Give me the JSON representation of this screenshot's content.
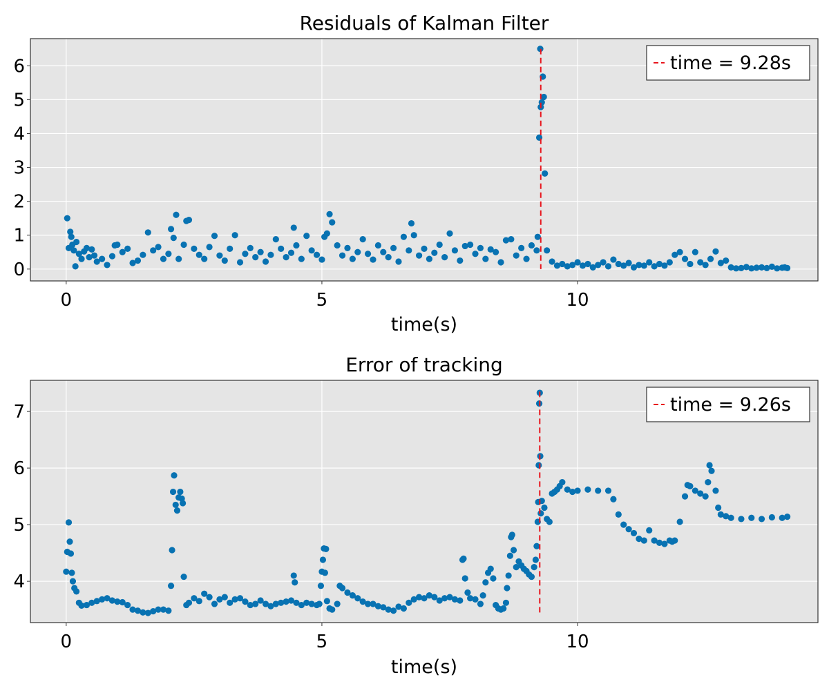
{
  "chart_data": [
    {
      "type": "scatter",
      "title": "Residuals of Kalman Filter",
      "xlabel": "time(s)",
      "ylabel": "",
      "xlim": [
        -0.7,
        14.7
      ],
      "ylim": [
        -0.35,
        6.8
      ],
      "xticks": [
        0,
        5,
        10
      ],
      "yticks": [
        0,
        1,
        2,
        3,
        4,
        5,
        6
      ],
      "grid": true,
      "legend_position": "top-right",
      "legend": [
        "time = 9.28s"
      ],
      "vline": {
        "x": 9.28,
        "y_from": 0.0,
        "y_to": 6.5,
        "color": "#e8141c"
      },
      "marker_color": "#0872b2",
      "background_color": "#e5e5e5",
      "series_points": [
        [
          0.02,
          1.5
        ],
        [
          0.05,
          0.62
        ],
        [
          0.08,
          1.1
        ],
        [
          0.1,
          0.95
        ],
        [
          0.12,
          0.72
        ],
        [
          0.15,
          0.55
        ],
        [
          0.18,
          0.08
        ],
        [
          0.2,
          0.8
        ],
        [
          0.25,
          0.45
        ],
        [
          0.3,
          0.3
        ],
        [
          0.35,
          0.52
        ],
        [
          0.4,
          0.62
        ],
        [
          0.45,
          0.35
        ],
        [
          0.5,
          0.58
        ],
        [
          0.55,
          0.4
        ],
        [
          0.6,
          0.22
        ],
        [
          0.7,
          0.3
        ],
        [
          0.8,
          0.12
        ],
        [
          0.9,
          0.38
        ],
        [
          0.95,
          0.7
        ],
        [
          1.0,
          0.72
        ],
        [
          1.1,
          0.5
        ],
        [
          1.2,
          0.6
        ],
        [
          1.3,
          0.18
        ],
        [
          1.4,
          0.25
        ],
        [
          1.5,
          0.42
        ],
        [
          1.6,
          1.08
        ],
        [
          1.7,
          0.55
        ],
        [
          1.8,
          0.65
        ],
        [
          1.9,
          0.3
        ],
        [
          2.0,
          0.45
        ],
        [
          2.05,
          1.18
        ],
        [
          2.1,
          0.92
        ],
        [
          2.15,
          1.6
        ],
        [
          2.2,
          0.3
        ],
        [
          2.3,
          0.72
        ],
        [
          2.35,
          1.42
        ],
        [
          2.4,
          1.45
        ],
        [
          2.5,
          0.6
        ],
        [
          2.6,
          0.42
        ],
        [
          2.7,
          0.3
        ],
        [
          2.8,
          0.65
        ],
        [
          2.9,
          0.98
        ],
        [
          3.0,
          0.4
        ],
        [
          3.1,
          0.25
        ],
        [
          3.2,
          0.6
        ],
        [
          3.3,
          1.0
        ],
        [
          3.4,
          0.2
        ],
        [
          3.5,
          0.45
        ],
        [
          3.6,
          0.62
        ],
        [
          3.7,
          0.35
        ],
        [
          3.8,
          0.5
        ],
        [
          3.9,
          0.22
        ],
        [
          4.0,
          0.42
        ],
        [
          4.1,
          0.88
        ],
        [
          4.2,
          0.6
        ],
        [
          4.3,
          0.35
        ],
        [
          4.4,
          0.48
        ],
        [
          4.45,
          1.22
        ],
        [
          4.5,
          0.7
        ],
        [
          4.6,
          0.3
        ],
        [
          4.7,
          0.98
        ],
        [
          4.8,
          0.55
        ],
        [
          4.9,
          0.42
        ],
        [
          5.0,
          0.28
        ],
        [
          5.05,
          0.95
        ],
        [
          5.1,
          1.05
        ],
        [
          5.15,
          1.62
        ],
        [
          5.2,
          1.38
        ],
        [
          5.3,
          0.7
        ],
        [
          5.4,
          0.4
        ],
        [
          5.5,
          0.62
        ],
        [
          5.6,
          0.3
        ],
        [
          5.7,
          0.5
        ],
        [
          5.8,
          0.88
        ],
        [
          5.9,
          0.45
        ],
        [
          6.0,
          0.28
        ],
        [
          6.1,
          0.7
        ],
        [
          6.2,
          0.5
        ],
        [
          6.3,
          0.35
        ],
        [
          6.4,
          0.62
        ],
        [
          6.5,
          0.22
        ],
        [
          6.6,
          0.95
        ],
        [
          6.7,
          0.55
        ],
        [
          6.75,
          1.35
        ],
        [
          6.8,
          1.0
        ],
        [
          6.9,
          0.4
        ],
        [
          7.0,
          0.6
        ],
        [
          7.1,
          0.3
        ],
        [
          7.2,
          0.48
        ],
        [
          7.3,
          0.72
        ],
        [
          7.4,
          0.35
        ],
        [
          7.5,
          1.05
        ],
        [
          7.6,
          0.55
        ],
        [
          7.7,
          0.25
        ],
        [
          7.8,
          0.68
        ],
        [
          7.9,
          0.72
        ],
        [
          8.0,
          0.45
        ],
        [
          8.1,
          0.62
        ],
        [
          8.2,
          0.3
        ],
        [
          8.3,
          0.58
        ],
        [
          8.4,
          0.5
        ],
        [
          8.5,
          0.2
        ],
        [
          8.6,
          0.85
        ],
        [
          8.7,
          0.88
        ],
        [
          8.8,
          0.4
        ],
        [
          8.9,
          0.62
        ],
        [
          9.0,
          0.3
        ],
        [
          9.1,
          0.7
        ],
        [
          9.2,
          0.55
        ],
        [
          9.22,
          0.95
        ],
        [
          9.25,
          3.88
        ],
        [
          9.27,
          6.5
        ],
        [
          9.28,
          4.78
        ],
        [
          9.3,
          4.92
        ],
        [
          9.32,
          5.68
        ],
        [
          9.34,
          5.08
        ],
        [
          9.36,
          2.82
        ],
        [
          9.4,
          0.55
        ],
        [
          9.5,
          0.22
        ],
        [
          9.6,
          0.1
        ],
        [
          9.7,
          0.15
        ],
        [
          9.8,
          0.08
        ],
        [
          9.9,
          0.12
        ],
        [
          10.0,
          0.2
        ],
        [
          10.1,
          0.1
        ],
        [
          10.2,
          0.15
        ],
        [
          10.3,
          0.05
        ],
        [
          10.4,
          0.12
        ],
        [
          10.5,
          0.2
        ],
        [
          10.6,
          0.08
        ],
        [
          10.7,
          0.28
        ],
        [
          10.8,
          0.15
        ],
        [
          10.9,
          0.1
        ],
        [
          11.0,
          0.18
        ],
        [
          11.1,
          0.05
        ],
        [
          11.2,
          0.12
        ],
        [
          11.3,
          0.1
        ],
        [
          11.4,
          0.2
        ],
        [
          11.5,
          0.08
        ],
        [
          11.6,
          0.15
        ],
        [
          11.7,
          0.1
        ],
        [
          11.8,
          0.2
        ],
        [
          11.9,
          0.42
        ],
        [
          12.0,
          0.5
        ],
        [
          12.1,
          0.3
        ],
        [
          12.2,
          0.15
        ],
        [
          12.3,
          0.5
        ],
        [
          12.4,
          0.2
        ],
        [
          12.5,
          0.12
        ],
        [
          12.6,
          0.3
        ],
        [
          12.7,
          0.52
        ],
        [
          12.8,
          0.18
        ],
        [
          12.9,
          0.25
        ],
        [
          13.0,
          0.05
        ],
        [
          13.1,
          0.02
        ],
        [
          13.2,
          0.03
        ],
        [
          13.3,
          0.06
        ],
        [
          13.4,
          0.02
        ],
        [
          13.5,
          0.04
        ],
        [
          13.6,
          0.05
        ],
        [
          13.7,
          0.03
        ],
        [
          13.8,
          0.07
        ],
        [
          13.9,
          0.02
        ],
        [
          14.0,
          0.04
        ],
        [
          14.05,
          0.05
        ],
        [
          14.1,
          0.03
        ]
      ]
    },
    {
      "type": "scatter",
      "title": "Error of tracking",
      "xlabel": "time(s)",
      "ylabel": "",
      "xlim": [
        -0.7,
        14.7
      ],
      "ylim": [
        3.27,
        7.55
      ],
      "xticks": [
        0,
        5,
        10
      ],
      "yticks": [
        4,
        5,
        6,
        7
      ],
      "grid": true,
      "legend_position": "top-right",
      "legend": [
        "time = 9.26s"
      ],
      "vline": {
        "x": 9.26,
        "y_from": 3.42,
        "y_to": 7.35,
        "color": "#e8141c"
      },
      "marker_color": "#0872b2",
      "background_color": "#e5e5e5",
      "series_points": [
        [
          0.0,
          4.17
        ],
        [
          0.02,
          4.52
        ],
        [
          0.05,
          5.04
        ],
        [
          0.07,
          4.7
        ],
        [
          0.09,
          4.49
        ],
        [
          0.11,
          4.15
        ],
        [
          0.13,
          4.0
        ],
        [
          0.16,
          3.88
        ],
        [
          0.2,
          3.82
        ],
        [
          0.25,
          3.62
        ],
        [
          0.3,
          3.57
        ],
        [
          0.4,
          3.58
        ],
        [
          0.5,
          3.62
        ],
        [
          0.6,
          3.65
        ],
        [
          0.7,
          3.68
        ],
        [
          0.8,
          3.7
        ],
        [
          0.9,
          3.66
        ],
        [
          1.0,
          3.64
        ],
        [
          1.1,
          3.63
        ],
        [
          1.2,
          3.58
        ],
        [
          1.3,
          3.5
        ],
        [
          1.4,
          3.48
        ],
        [
          1.5,
          3.45
        ],
        [
          1.6,
          3.44
        ],
        [
          1.7,
          3.47
        ],
        [
          1.8,
          3.5
        ],
        [
          1.9,
          3.5
        ],
        [
          2.0,
          3.48
        ],
        [
          2.05,
          3.92
        ],
        [
          2.07,
          4.55
        ],
        [
          2.09,
          5.58
        ],
        [
          2.11,
          5.87
        ],
        [
          2.14,
          5.35
        ],
        [
          2.17,
          5.25
        ],
        [
          2.2,
          5.48
        ],
        [
          2.23,
          5.58
        ],
        [
          2.26,
          5.46
        ],
        [
          2.28,
          5.38
        ],
        [
          2.3,
          4.08
        ],
        [
          2.35,
          3.58
        ],
        [
          2.4,
          3.62
        ],
        [
          2.5,
          3.7
        ],
        [
          2.6,
          3.65
        ],
        [
          2.7,
          3.78
        ],
        [
          2.8,
          3.72
        ],
        [
          2.9,
          3.6
        ],
        [
          3.0,
          3.68
        ],
        [
          3.1,
          3.72
        ],
        [
          3.2,
          3.62
        ],
        [
          3.3,
          3.68
        ],
        [
          3.4,
          3.7
        ],
        [
          3.5,
          3.64
        ],
        [
          3.6,
          3.58
        ],
        [
          3.7,
          3.6
        ],
        [
          3.8,
          3.66
        ],
        [
          3.9,
          3.6
        ],
        [
          4.0,
          3.56
        ],
        [
          4.1,
          3.6
        ],
        [
          4.2,
          3.62
        ],
        [
          4.3,
          3.64
        ],
        [
          4.4,
          3.66
        ],
        [
          4.45,
          4.1
        ],
        [
          4.47,
          3.98
        ],
        [
          4.5,
          3.62
        ],
        [
          4.6,
          3.58
        ],
        [
          4.7,
          3.62
        ],
        [
          4.8,
          3.6
        ],
        [
          4.9,
          3.58
        ],
        [
          4.95,
          3.6
        ],
        [
          4.98,
          3.92
        ],
        [
          5.0,
          4.17
        ],
        [
          5.02,
          4.38
        ],
        [
          5.04,
          4.58
        ],
        [
          5.06,
          4.15
        ],
        [
          5.08,
          4.57
        ],
        [
          5.1,
          3.65
        ],
        [
          5.15,
          3.52
        ],
        [
          5.2,
          3.5
        ],
        [
          5.3,
          3.6
        ],
        [
          5.35,
          3.92
        ],
        [
          5.4,
          3.88
        ],
        [
          5.5,
          3.8
        ],
        [
          5.6,
          3.75
        ],
        [
          5.7,
          3.7
        ],
        [
          5.8,
          3.64
        ],
        [
          5.9,
          3.6
        ],
        [
          6.0,
          3.6
        ],
        [
          6.1,
          3.56
        ],
        [
          6.2,
          3.54
        ],
        [
          6.3,
          3.5
        ],
        [
          6.4,
          3.48
        ],
        [
          6.5,
          3.55
        ],
        [
          6.6,
          3.52
        ],
        [
          6.7,
          3.62
        ],
        [
          6.8,
          3.68
        ],
        [
          6.9,
          3.72
        ],
        [
          7.0,
          3.7
        ],
        [
          7.1,
          3.75
        ],
        [
          7.2,
          3.72
        ],
        [
          7.3,
          3.66
        ],
        [
          7.4,
          3.7
        ],
        [
          7.5,
          3.72
        ],
        [
          7.6,
          3.68
        ],
        [
          7.7,
          3.66
        ],
        [
          7.75,
          4.38
        ],
        [
          7.77,
          4.4
        ],
        [
          7.8,
          4.05
        ],
        [
          7.85,
          3.8
        ],
        [
          7.9,
          3.7
        ],
        [
          8.0,
          3.68
        ],
        [
          8.1,
          3.6
        ],
        [
          8.15,
          3.75
        ],
        [
          8.2,
          3.98
        ],
        [
          8.25,
          4.15
        ],
        [
          8.3,
          4.22
        ],
        [
          8.35,
          4.05
        ],
        [
          8.4,
          3.58
        ],
        [
          8.45,
          3.52
        ],
        [
          8.5,
          3.5
        ],
        [
          8.55,
          3.52
        ],
        [
          8.6,
          3.62
        ],
        [
          8.62,
          3.88
        ],
        [
          8.65,
          4.1
        ],
        [
          8.68,
          4.45
        ],
        [
          8.7,
          4.78
        ],
        [
          8.72,
          4.82
        ],
        [
          8.75,
          4.55
        ],
        [
          8.8,
          4.25
        ],
        [
          8.85,
          4.35
        ],
        [
          8.9,
          4.28
        ],
        [
          8.95,
          4.22
        ],
        [
          9.0,
          4.18
        ],
        [
          9.05,
          4.12
        ],
        [
          9.1,
          4.08
        ],
        [
          9.15,
          4.25
        ],
        [
          9.18,
          4.38
        ],
        [
          9.2,
          4.62
        ],
        [
          9.22,
          5.05
        ],
        [
          9.23,
          5.4
        ],
        [
          9.24,
          6.05
        ],
        [
          9.25,
          7.14
        ],
        [
          9.26,
          7.33
        ],
        [
          9.27,
          6.21
        ],
        [
          9.28,
          5.2
        ],
        [
          9.3,
          5.42
        ],
        [
          9.35,
          5.3
        ],
        [
          9.4,
          5.1
        ],
        [
          9.45,
          5.05
        ],
        [
          9.5,
          5.55
        ],
        [
          9.55,
          5.58
        ],
        [
          9.6,
          5.62
        ],
        [
          9.65,
          5.68
        ],
        [
          9.7,
          5.75
        ],
        [
          9.8,
          5.62
        ],
        [
          9.9,
          5.58
        ],
        [
          10.0,
          5.6
        ],
        [
          10.2,
          5.62
        ],
        [
          10.4,
          5.6
        ],
        [
          10.6,
          5.6
        ],
        [
          10.7,
          5.45
        ],
        [
          10.8,
          5.18
        ],
        [
          10.9,
          5.0
        ],
        [
          11.0,
          4.92
        ],
        [
          11.1,
          4.85
        ],
        [
          11.2,
          4.75
        ],
        [
          11.3,
          4.72
        ],
        [
          11.4,
          4.9
        ],
        [
          11.5,
          4.72
        ],
        [
          11.6,
          4.68
        ],
        [
          11.7,
          4.66
        ],
        [
          11.8,
          4.72
        ],
        [
          11.85,
          4.7
        ],
        [
          11.9,
          4.72
        ],
        [
          12.0,
          5.05
        ],
        [
          12.1,
          5.5
        ],
        [
          12.15,
          5.7
        ],
        [
          12.2,
          5.68
        ],
        [
          12.3,
          5.6
        ],
        [
          12.4,
          5.55
        ],
        [
          12.5,
          5.5
        ],
        [
          12.55,
          5.75
        ],
        [
          12.58,
          6.05
        ],
        [
          12.62,
          5.95
        ],
        [
          12.7,
          5.6
        ],
        [
          12.75,
          5.3
        ],
        [
          12.8,
          5.18
        ],
        [
          12.9,
          5.15
        ],
        [
          13.0,
          5.12
        ],
        [
          13.2,
          5.1
        ],
        [
          13.4,
          5.12
        ],
        [
          13.6,
          5.1
        ],
        [
          13.8,
          5.13
        ],
        [
          14.0,
          5.12
        ],
        [
          14.1,
          5.14
        ]
      ]
    }
  ]
}
